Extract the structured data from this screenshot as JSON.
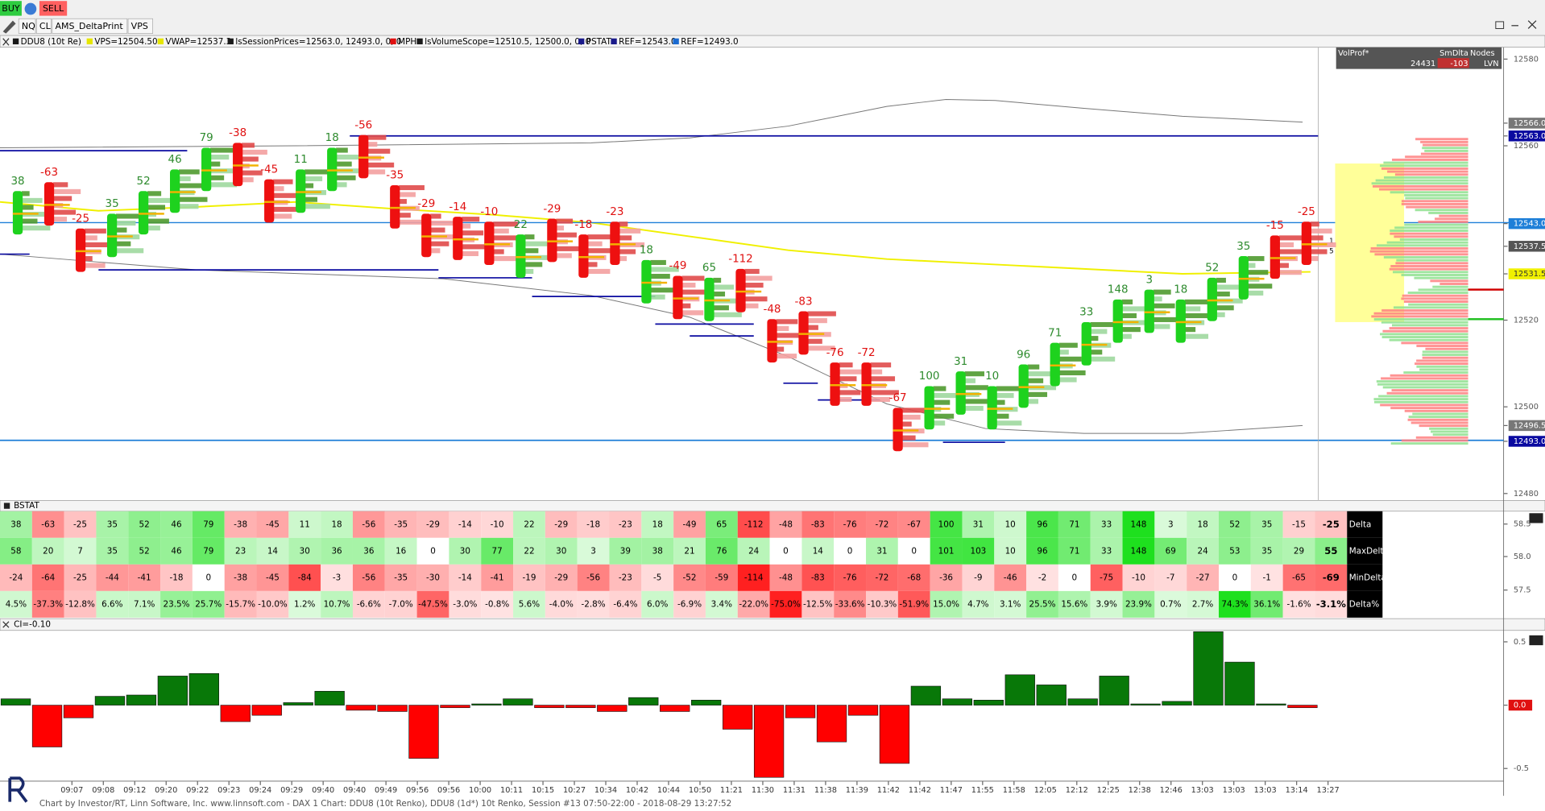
{
  "toolbar": {
    "buttons": [
      "BUY",
      "SELL"
    ],
    "symbols": [
      "NQ",
      "CL",
      "AMS_DeltaPrint",
      "VPS"
    ]
  },
  "legend": [
    "DDU8 (10t Re)",
    "VPS=12504.50",
    "VWAP=12537.3",
    "lsSessionPrices=12563.0, 12493.0, 0, 0",
    "MPH",
    "lsVolumeScope=12510.5, 12500.0, 0, 0",
    "PSTAT",
    "REF=12543.0",
    "REF=12493.0"
  ],
  "volprof": {
    "headers": [
      "VolProf*",
      "SmDlta",
      "Nodes"
    ],
    "values": [
      "24431",
      "-103",
      "LVN"
    ]
  },
  "price_axis": [
    "12580",
    "12566.0",
    "12563.0",
    "12560",
    "12543.0",
    "12537.5",
    "12531.5",
    "12520",
    "12500",
    "12496.5",
    "12493.0",
    "12480"
  ],
  "profile_marks": [
    "1",
    "5"
  ],
  "bstat": {
    "title": "BSTAT",
    "axis": [
      "58.5",
      "58.0",
      "57.5"
    ],
    "rows": [
      {
        "name": "Delta",
        "values": [
          38,
          -63,
          -25,
          35,
          52,
          46,
          79,
          -38,
          -45,
          11,
          18,
          -56,
          -35,
          -29,
          -14,
          -10,
          22,
          -29,
          -18,
          -23,
          18,
          -49,
          65,
          -112,
          -48,
          -83,
          -76,
          -72,
          -67,
          100,
          31,
          10,
          96,
          71,
          33,
          148,
          3,
          18,
          52,
          35,
          -15,
          -25
        ]
      },
      {
        "name": "MaxDelta",
        "values": [
          58,
          20,
          7,
          35,
          52,
          46,
          79,
          23,
          14,
          30,
          36,
          36,
          16,
          0,
          30,
          77,
          22,
          30,
          3,
          39,
          38,
          21,
          76,
          24,
          0,
          14,
          0,
          31,
          0,
          101,
          103,
          10,
          96,
          71,
          33,
          148,
          69,
          24,
          53,
          35,
          29,
          55
        ]
      },
      {
        "name": "MinDelta",
        "values": [
          -24,
          -64,
          -25,
          -44,
          -41,
          -18,
          0,
          -38,
          -45,
          -84,
          -3,
          -56,
          -35,
          -30,
          -14,
          -41,
          -19,
          -29,
          -56,
          -23,
          -5,
          -52,
          -59,
          -114,
          -48,
          -83,
          -76,
          -72,
          -68,
          -36,
          -9,
          -46,
          -2,
          0,
          -75,
          -10,
          -7,
          -27,
          0,
          -1,
          -65,
          -69
        ]
      },
      {
        "name": "Delta%",
        "values": [
          "4.5%",
          "-37.3%",
          "-12.8%",
          "6.6%",
          "7.1%",
          "23.5%",
          "25.7%",
          "-15.7%",
          "-10.0%",
          "1.2%",
          "10.7%",
          "-6.6%",
          "-7.0%",
          "-47.5%",
          "-3.0%",
          "-0.8%",
          "5.6%",
          "-4.0%",
          "-2.8%",
          "-6.4%",
          "6.0%",
          "-6.9%",
          "3.4%",
          "-22.0%",
          "-75.0%",
          "-12.5%",
          "-33.6%",
          "-10.3%",
          "-51.9%",
          "15.0%",
          "4.7%",
          "3.1%",
          "25.5%",
          "15.6%",
          "3.9%",
          "23.9%",
          "0.7%",
          "2.7%",
          "74.3%",
          "36.1%",
          "-1.6%",
          "-3.1%"
        ]
      }
    ]
  },
  "ci": {
    "title": "CI=-0.10",
    "values": [
      0.05,
      -0.33,
      -0.1,
      0.07,
      0.08,
      0.23,
      0.25,
      -0.13,
      -0.08,
      0.02,
      0.11,
      -0.04,
      -0.05,
      -0.42,
      -0.02,
      0.01,
      0.05,
      -0.02,
      -0.02,
      -0.05,
      0.06,
      -0.05,
      0.04,
      -0.19,
      -0.57,
      -0.1,
      -0.29,
      -0.08,
      -0.46,
      0.15,
      0.05,
      0.04,
      0.24,
      0.16,
      0.05,
      0.23,
      0.01,
      0.03,
      0.58,
      0.34,
      0.01,
      -0.02
    ],
    "ylim": [
      -0.6,
      0.59
    ],
    "yticks": [
      0.5,
      {
        "value": 0,
        "label": "0.0"
      },
      -0.5
    ]
  },
  "time_labels": [
    "09:07",
    "09:08",
    "09:12",
    "09:20",
    "09:22",
    "09:23",
    "09:24",
    "09:29",
    "09:40",
    "09:40",
    "09:49",
    "09:56",
    "09:56",
    "10:00",
    "10:11",
    "10:15",
    "10:27",
    "10:34",
    "10:42",
    "10:44",
    "10:50",
    "11:21",
    "11:30",
    "11:31",
    "11:38",
    "11:39",
    "11:42",
    "11:42",
    "11:47",
    "11:55",
    "11:58",
    "12:05",
    "12:12",
    "12:25",
    "12:38",
    "12:46",
    "13:03",
    "13:03",
    "13:03",
    "13:14",
    "13:27"
  ],
  "footer": "Chart by Investor/RT, Linn Software, Inc. www.linnsoft.com - DAX 1 Chart: DDU8 (10t Renko), DDU8 (1d*) 10t Renko, Session #13 07:50-22:00 - 2018-08-29 13:27:52"
}
